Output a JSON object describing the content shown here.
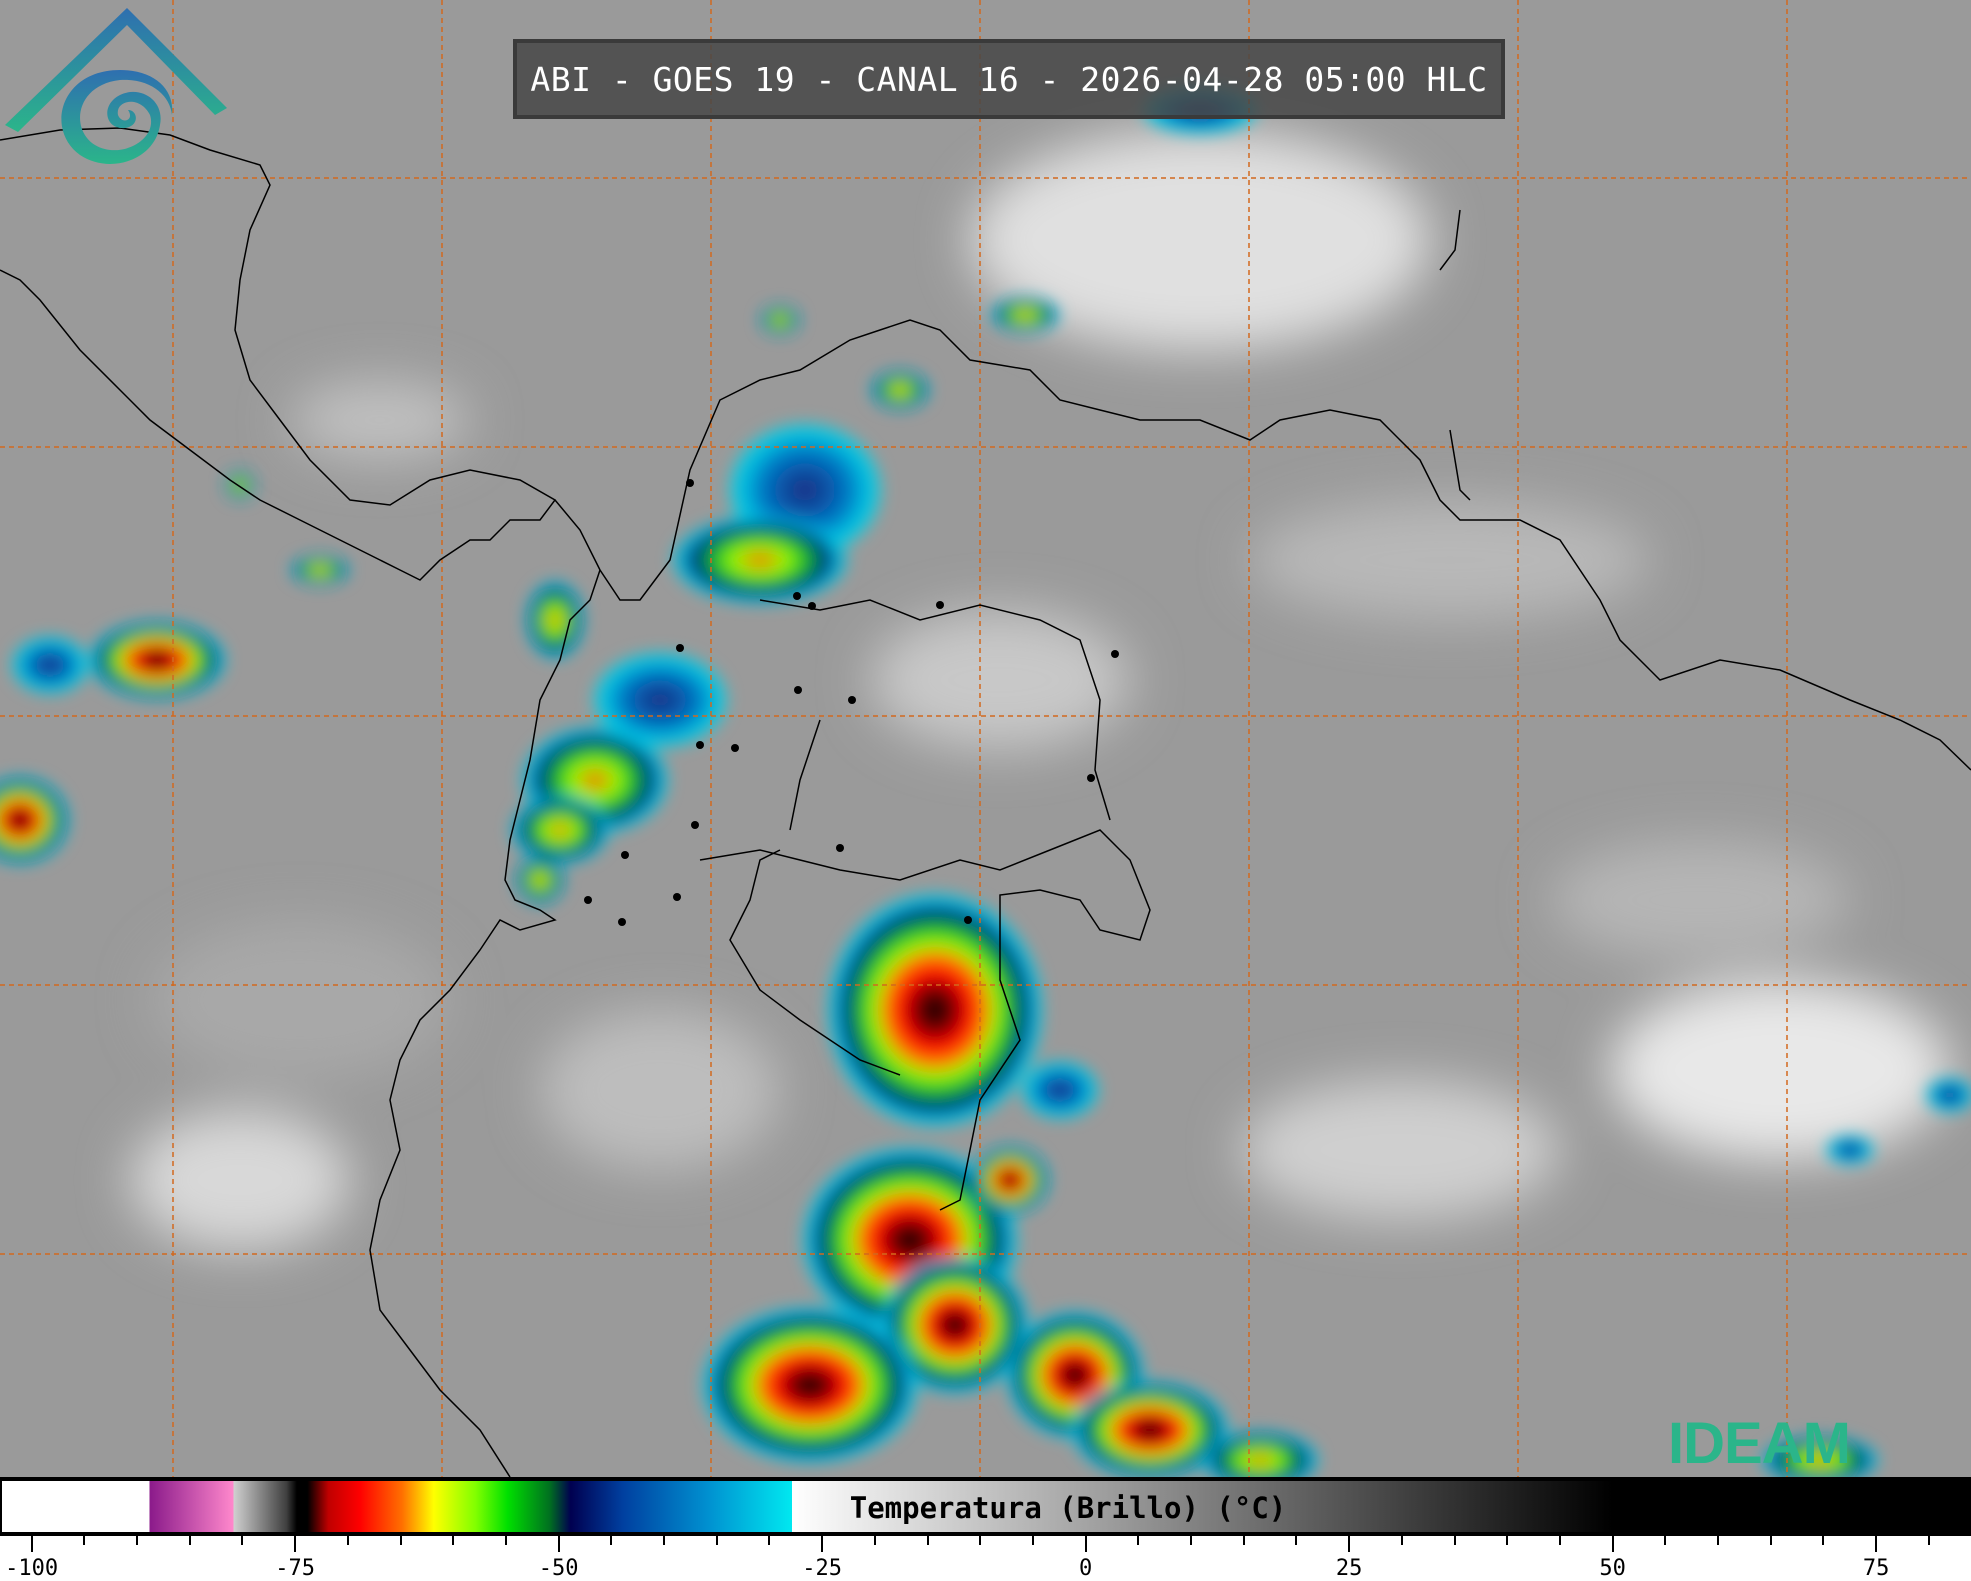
{
  "title": "ABI - GOES 19 - CANAL 16 - 2026-04-28 05:00 HLC",
  "colorbar": {
    "label": "Temperatura (Brillo) (°C)",
    "range": [
      -103,
      84
    ],
    "ticks": [
      "-100",
      "-75",
      "-50",
      "-25",
      "0",
      "25",
      "50",
      "75"
    ],
    "tick_values": [
      -100,
      -75,
      -50,
      -25,
      0,
      25,
      50,
      75
    ],
    "minor_step": 5,
    "stops": [
      [
        -103,
        "#ffffff"
      ],
      [
        -89,
        "#ffffff"
      ],
      [
        -89,
        "#8a1a8a"
      ],
      [
        -81,
        "#ff88cc"
      ],
      [
        -81,
        "#d0d0d0"
      ],
      [
        -76,
        "#404040"
      ],
      [
        -75,
        "#000000"
      ],
      [
        -74,
        "#000000"
      ],
      [
        -72,
        "#c00000"
      ],
      [
        -69,
        "#ff0000"
      ],
      [
        -65,
        "#ff7000"
      ],
      [
        -62,
        "#ffff00"
      ],
      [
        -58,
        "#80ff00"
      ],
      [
        -55,
        "#00e000"
      ],
      [
        -51,
        "#007020"
      ],
      [
        -49,
        "#000050"
      ],
      [
        -44,
        "#0040a0"
      ],
      [
        -36,
        "#0090d0"
      ],
      [
        -28,
        "#00e8f0"
      ],
      [
        -28,
        "#ffffff"
      ],
      [
        50,
        "#000000"
      ],
      [
        84,
        "#000000"
      ]
    ]
  },
  "logo": {
    "text": "IDEAM",
    "colors": [
      "#2e6fb0",
      "#2bb58a"
    ]
  },
  "map": {
    "background": "#9a9a9a",
    "gridline_color": "#d2691e",
    "coastline_color": "#000000"
  }
}
